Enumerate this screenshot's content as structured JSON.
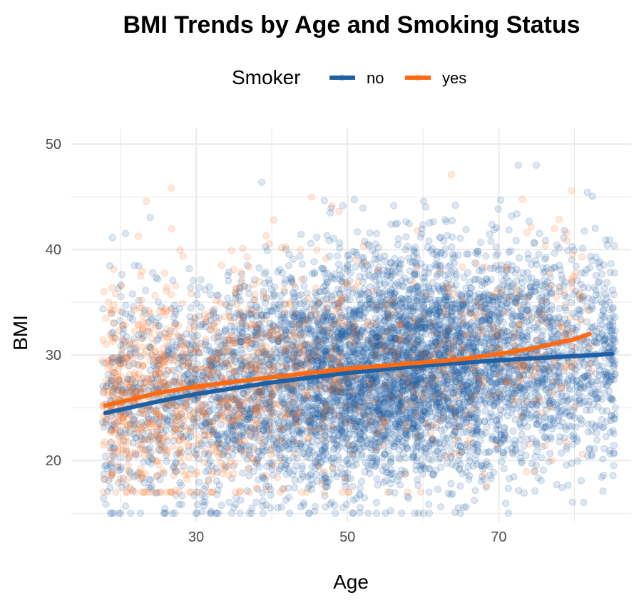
{
  "chart_data": {
    "type": "scatter",
    "title": "BMI Trends by Age and Smoking Status",
    "xlabel": "Age",
    "ylabel": "BMI",
    "xlim": [
      13.5,
      87.5
    ],
    "ylim": [
      14.2,
      51.5
    ],
    "x_ticks": [
      30,
      50,
      70
    ],
    "x_minor_ticks": [
      20,
      40,
      60,
      80
    ],
    "y_ticks": [
      20,
      30,
      40,
      50
    ],
    "y_minor_ticks": [
      15,
      25,
      35,
      45
    ],
    "grid": true,
    "legend": {
      "title": "Smoker",
      "position": "top",
      "entries": [
        {
          "label": "no",
          "color": "#1F5FA3"
        },
        {
          "label": "yes",
          "color": "#FF6A13"
        }
      ]
    },
    "series": [
      {
        "name": "no",
        "color": "#1F5FA3",
        "point_opacity": 0.15,
        "approx_point_count": 6500,
        "age_range": [
          18,
          85
        ],
        "bmi_range": [
          15,
          48
        ],
        "trend": {
          "x": [
            18,
            25,
            30,
            40,
            50,
            60,
            70,
            80,
            85
          ],
          "y": [
            24.5,
            25.6,
            26.3,
            27.4,
            28.3,
            29.0,
            29.5,
            29.9,
            30.1
          ]
        }
      },
      {
        "name": "yes",
        "color": "#FF6A13",
        "point_opacity": 0.15,
        "approx_point_count": 1300,
        "age_range": [
          18,
          82
        ],
        "bmi_range": [
          17,
          50
        ],
        "trend": {
          "x": [
            18,
            25,
            30,
            40,
            50,
            60,
            65,
            70,
            75,
            80,
            82
          ],
          "y": [
            25.2,
            26.4,
            27.0,
            27.9,
            28.7,
            29.3,
            29.6,
            30.1,
            30.7,
            31.5,
            32.0
          ]
        }
      }
    ]
  }
}
